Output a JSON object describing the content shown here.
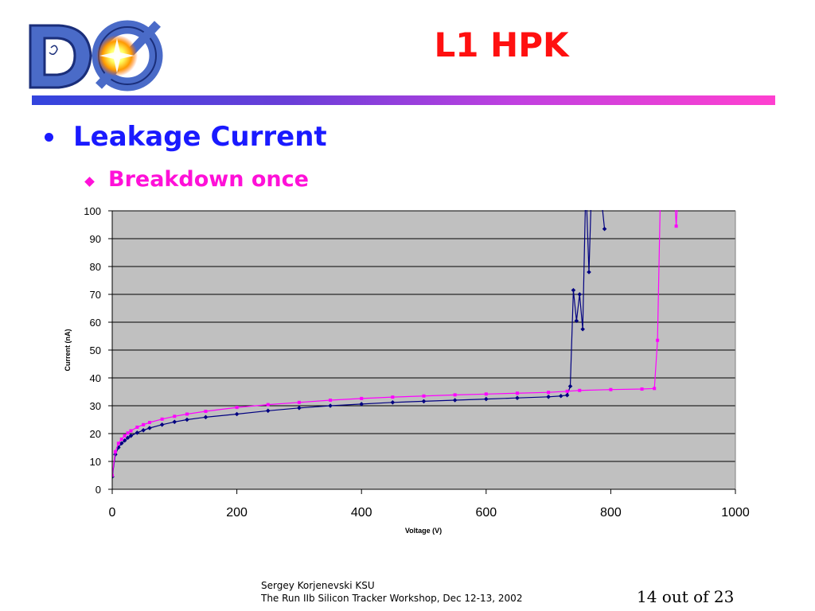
{
  "slide": {
    "title": "L1 HPK",
    "bullet_main": "Leakage Current",
    "bullet_sub": "Breakdown once",
    "footer_author": "Sergey Korjenevski KSU",
    "footer_event": "The Run IIb Silicon Tracker Workshop,  Dec 12-13, 2002",
    "page_number": "14 out of 23",
    "logo_icon": "d0-experiment-logo",
    "title_color": "#ff1010",
    "bullet_color": "#1a1aff",
    "sub_bullet_color": "#ff10d8"
  },
  "chart_data": {
    "type": "line",
    "title": "",
    "xlabel": "Voltage (V)",
    "ylabel": "Current (nA)",
    "xlim": [
      0,
      1000
    ],
    "ylim": [
      0,
      100
    ],
    "xticks": [
      0,
      200,
      400,
      600,
      800,
      1000
    ],
    "yticks": [
      0,
      10,
      20,
      30,
      40,
      50,
      60,
      70,
      80,
      90,
      100
    ],
    "grid": "horizontal",
    "plot_background": "#c0c0c0",
    "legend": "none",
    "series": [
      {
        "color": "#000080",
        "marker": "diamond",
        "x": [
          0,
          5,
          10,
          15,
          20,
          25,
          30,
          40,
          50,
          60,
          80,
          100,
          120,
          150,
          200,
          250,
          300,
          350,
          400,
          450,
          500,
          550,
          600,
          650,
          700,
          720,
          730,
          735,
          740,
          745,
          750,
          755,
          760,
          765,
          770,
          780,
          790
        ],
        "y": [
          4.5,
          12.5,
          15,
          16.5,
          17.5,
          18.5,
          19.2,
          20.3,
          21.2,
          22,
          23.2,
          24.2,
          25,
          25.9,
          27,
          28.2,
          29.2,
          30,
          30.6,
          31.2,
          31.6,
          32,
          32.4,
          32.8,
          33.2,
          33.5,
          33.8,
          37,
          71.5,
          60.5,
          70,
          57.5,
          110,
          78,
          115,
          115,
          93.5
        ]
      },
      {
        "color": "#ff00ff",
        "marker": "square",
        "x": [
          0,
          5,
          10,
          15,
          20,
          25,
          30,
          40,
          50,
          60,
          80,
          100,
          120,
          150,
          200,
          250,
          300,
          350,
          400,
          450,
          500,
          550,
          600,
          650,
          700,
          730,
          750,
          800,
          850,
          870,
          875,
          880,
          900,
          905,
          910
        ],
        "y": [
          5,
          13.5,
          16.5,
          18,
          19.2,
          20.2,
          21,
          22.3,
          23.2,
          24,
          25.2,
          26.2,
          27,
          28,
          29.4,
          30.4,
          31.2,
          32,
          32.6,
          33.1,
          33.5,
          33.9,
          34.2,
          34.5,
          34.8,
          35.2,
          35.5,
          35.8,
          36,
          36.2,
          53.5,
          110,
          115,
          94.5,
          115
        ]
      }
    ]
  }
}
